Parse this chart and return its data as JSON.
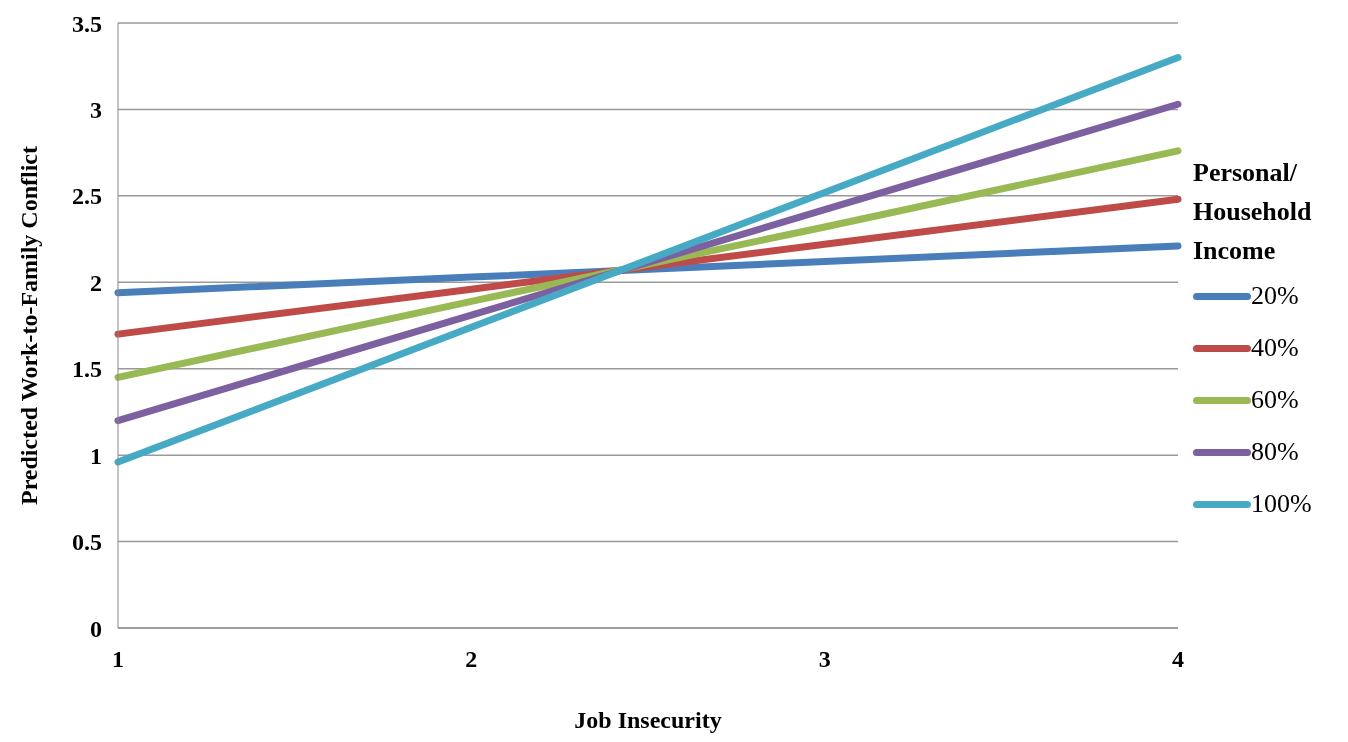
{
  "chart_data": {
    "type": "line",
    "xlabel": "Job Insecurity",
    "ylabel": "Predicted Work-to-Family Conflict",
    "legend_title": "Personal/ Household Income",
    "categories": [
      "1",
      "2",
      "3",
      "4"
    ],
    "series": [
      {
        "name": "20%",
        "color": "#4a7ebb",
        "values": [
          1.94,
          2.03,
          2.12,
          2.21
        ]
      },
      {
        "name": "40%",
        "color": "#be4b48",
        "values": [
          1.7,
          1.96,
          2.22,
          2.48
        ]
      },
      {
        "name": "60%",
        "color": "#98b954",
        "values": [
          1.45,
          1.89,
          2.32,
          2.76
        ]
      },
      {
        "name": "80%",
        "color": "#7d60a0",
        "values": [
          1.2,
          1.81,
          2.42,
          3.03
        ]
      },
      {
        "name": "100%",
        "color": "#46aac5",
        "values": [
          0.96,
          1.74,
          2.52,
          3.3
        ]
      }
    ],
    "ylim": [
      0,
      3.5
    ],
    "yticks": [
      0,
      0.5,
      1,
      1.5,
      2,
      2.5,
      3,
      3.5
    ],
    "grid": "y",
    "legend": "right",
    "marker": "none",
    "line_style": "solid"
  }
}
